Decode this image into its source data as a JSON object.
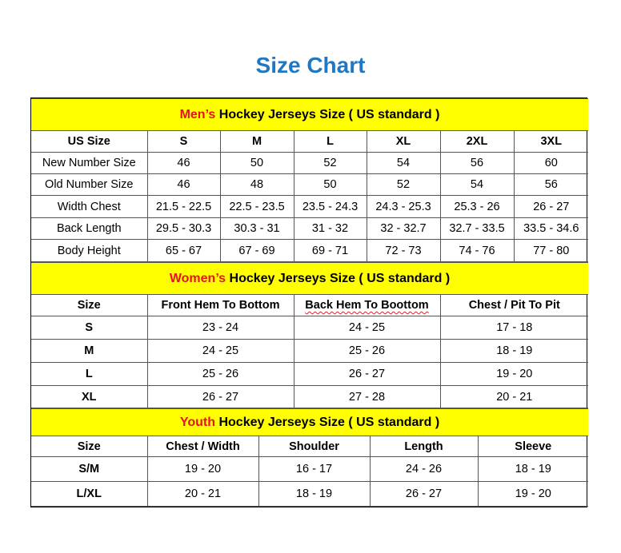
{
  "title": "Size Chart",
  "colors": {
    "title": "#1F78C1",
    "section_bg": "#FFFF00",
    "highlight": "#E8121C"
  },
  "men": {
    "heading_highlight": "Men’s",
    "heading_rest": " Hockey Jerseys Size ( US standard )",
    "headers": [
      "US Size",
      "S",
      "M",
      "L",
      "XL",
      "2XL",
      "3XL"
    ],
    "rows": [
      [
        "New Number Size",
        "46",
        "50",
        "52",
        "54",
        "56",
        "60"
      ],
      [
        "Old Number Size",
        "46",
        "48",
        "50",
        "52",
        "54",
        "56"
      ],
      [
        "Width Chest",
        "21.5 - 22.5",
        "22.5 - 23.5",
        "23.5 - 24.3",
        "24.3 - 25.3",
        "25.3 - 26",
        "26 - 27"
      ],
      [
        "Back Length",
        "29.5 - 30.3",
        "30.3 - 31",
        "31 - 32",
        "32 - 32.7",
        "32.7 - 33.5",
        "33.5 - 34.6"
      ],
      [
        "Body Height",
        "65 - 67",
        "67 - 69",
        "69 - 71",
        "72 - 73",
        "74 - 76",
        "77 - 80"
      ]
    ]
  },
  "women": {
    "heading_highlight": "Women’s",
    "heading_rest": " Hockey Jerseys Size ( US standard )",
    "headers": [
      "Size",
      "Front Hem To Bottom",
      "Back Hem To Boottom",
      "Chest / Pit To Pit"
    ],
    "rows": [
      [
        "S",
        "23 - 24",
        "24 - 25",
        "17 - 18"
      ],
      [
        "M",
        "24 - 25",
        "25 - 26",
        "18 - 19"
      ],
      [
        "L",
        "25 - 26",
        "26 - 27",
        "19 - 20"
      ],
      [
        "XL",
        "26 - 27",
        "27 - 28",
        "20 - 21"
      ]
    ]
  },
  "youth": {
    "heading_highlight": "Youth",
    "heading_rest": " Hockey Jerseys Size ( US standard )",
    "headers": [
      "Size",
      "Chest / Width",
      "Shoulder",
      "Length",
      "Sleeve"
    ],
    "rows": [
      [
        "S/M",
        "19 - 20",
        "16 - 17",
        "24 - 26",
        "18 - 19"
      ],
      [
        "L/XL",
        "20 - 21",
        "18 - 19",
        "26 - 27",
        "19 - 20"
      ]
    ]
  }
}
